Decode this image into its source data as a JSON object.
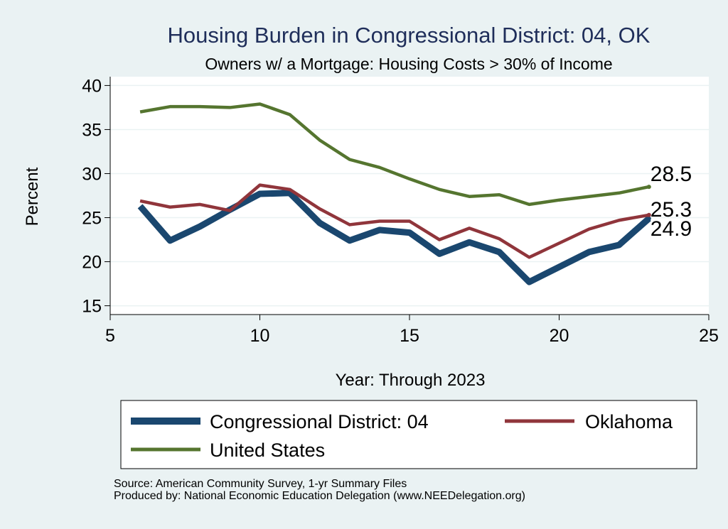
{
  "chart_data": {
    "type": "line",
    "title": "Housing Burden in Congressional District:  04, OK",
    "subtitle": "Owners w/ a Mortgage: Housing Costs > 30% of Income",
    "xlabel": "Year: Through 2023",
    "ylabel": "Percent",
    "xlim": [
      5,
      25
    ],
    "ylim": [
      14,
      41
    ],
    "xticks": [
      5,
      10,
      15,
      20,
      25
    ],
    "yticks": [
      15,
      20,
      25,
      30,
      35,
      40
    ],
    "grid": true,
    "legend_position": "bottom",
    "x": [
      6,
      7,
      8,
      9,
      10,
      11,
      12,
      13,
      14,
      15,
      16,
      17,
      18,
      19,
      20,
      21,
      22,
      23
    ],
    "series": [
      {
        "name": "Congressional District:  04",
        "color": "#1a476f",
        "values": [
          26.3,
          22.4,
          24.0,
          25.9,
          27.7,
          27.8,
          24.4,
          22.4,
          23.6,
          23.3,
          20.9,
          22.2,
          21.1,
          17.7,
          19.4,
          21.1,
          21.9,
          24.9
        ],
        "end_label": "24.9"
      },
      {
        "name": "Oklahoma",
        "color": "#90353b",
        "values": [
          26.9,
          26.2,
          26.5,
          25.8,
          28.7,
          28.2,
          26.0,
          24.2,
          24.6,
          24.6,
          22.5,
          23.8,
          22.6,
          20.5,
          22.1,
          23.7,
          24.7,
          25.3
        ],
        "end_label": "25.3"
      },
      {
        "name": "United States",
        "color": "#55752f",
        "values": [
          37.0,
          37.6,
          37.6,
          37.5,
          37.9,
          36.7,
          33.8,
          31.6,
          30.7,
          29.4,
          28.2,
          27.4,
          27.6,
          26.5,
          27.0,
          27.4,
          27.8,
          28.5
        ],
        "end_label": "28.5"
      }
    ]
  },
  "source": {
    "line1": "Source: American Community Survey, 1-yr Summary Files",
    "line2": "Produced by: National Economic Education Delegation (www.NEEDelegation.org)"
  }
}
